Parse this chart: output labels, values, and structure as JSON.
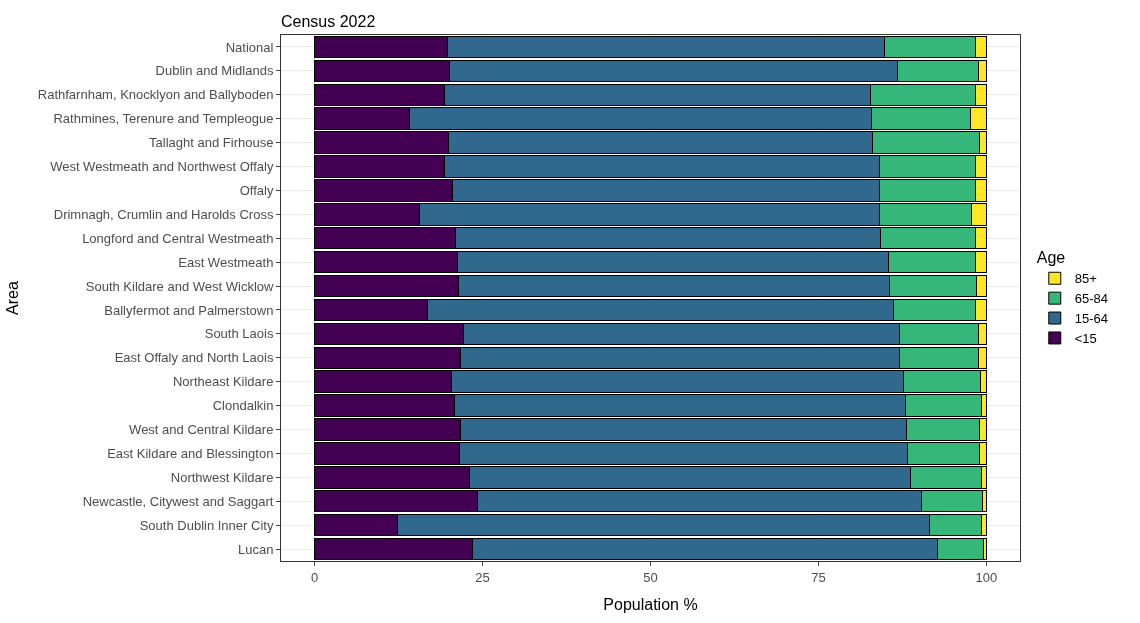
{
  "chart_data": {
    "type": "bar",
    "orientation": "horizontal",
    "stacked": true,
    "title": "Census 2022",
    "xlabel": "Population %",
    "ylabel": "Area",
    "legend_title": "Age",
    "legend": "right",
    "grid": true,
    "categories": [
      "National",
      "Dublin and Midlands",
      "Rathfarnham, Knocklyon and Ballyboden",
      "Rathmines, Terenure and Templeogue",
      "Tallaght and Firhouse",
      "West Westmeath and Northwest Offaly",
      "Offaly",
      "Drimnagh, Crumlin and Harolds Cross",
      "Longford and Central Westmeath",
      "East Westmeath",
      "South Kildare and West Wicklow",
      "Ballyfermot and Palmerstown",
      "South Laois",
      "East Offaly and North Laois",
      "Northeast Kildare",
      "Clondalkin",
      "West and Central Kildare",
      "East Kildare and Blessington",
      "Northwest Kildare",
      "Newcastle, Citywest and Saggart",
      "South Dublin Inner City",
      "Lucan"
    ],
    "xlim": [
      -5,
      105
    ],
    "xticks": [
      0,
      25,
      50,
      75,
      100
    ],
    "series": [
      {
        "name": "<15",
        "color": "#440154",
        "values": [
          19.8,
          20.1,
          19.4,
          14.1,
          19.9,
          19.3,
          20.5,
          15.6,
          20.9,
          21.2,
          21.4,
          16.8,
          22.1,
          21.7,
          20.4,
          20.8,
          21.7,
          21.5,
          23.0,
          24.3,
          12.4,
          23.5
        ]
      },
      {
        "name": "15-64",
        "color": "#31688e",
        "values": [
          65.0,
          66.7,
          63.4,
          68.8,
          63.2,
          64.8,
          63.6,
          68.5,
          63.3,
          64.2,
          64.1,
          69.4,
          64.9,
          65.3,
          67.2,
          67.1,
          66.4,
          66.7,
          65.7,
          66.0,
          79.2,
          69.2
        ]
      },
      {
        "name": "65-84",
        "color": "#35b779",
        "values": [
          13.6,
          12.0,
          15.6,
          14.7,
          15.9,
          14.3,
          14.3,
          13.7,
          14.2,
          13.0,
          13.0,
          12.2,
          11.8,
          11.8,
          11.5,
          11.4,
          10.9,
          10.8,
          10.5,
          9.1,
          7.6,
          6.9
        ]
      },
      {
        "name": "85+",
        "color": "#fde725",
        "values": [
          1.6,
          1.2,
          1.6,
          2.4,
          1.0,
          1.6,
          1.6,
          2.2,
          1.6,
          1.6,
          1.5,
          1.6,
          1.2,
          1.2,
          0.9,
          0.7,
          1.0,
          1.0,
          0.8,
          0.6,
          0.8,
          0.4
        ]
      }
    ]
  }
}
